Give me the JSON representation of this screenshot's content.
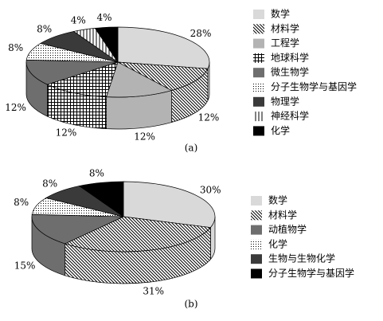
{
  "chart_data": [
    {
      "type": "pie3d",
      "caption": "(a)",
      "categories": [
        "数学",
        "材料学",
        "工程学",
        "地球科学",
        "微生物学",
        "分子生物学与基因学",
        "物理学",
        "神经科学",
        "化学"
      ],
      "values": [
        28,
        12,
        12,
        12,
        12,
        8,
        8,
        4,
        4
      ],
      "value_labels": [
        "28%",
        "12%",
        "12%",
        "12%",
        "12%",
        "8%",
        "8%",
        "4%",
        "4%"
      ],
      "colors": [
        "#d9d9d9",
        "#000000",
        "#b3b3b3",
        "#000000",
        "#6e6e6e",
        "#000000",
        "#3a3a3a",
        "#000000",
        "#000000"
      ],
      "patterns": [
        "solid",
        "hatch",
        "solid",
        "grid",
        "solid",
        "dots",
        "solid",
        "vlines",
        "solid"
      ]
    },
    {
      "type": "pie3d",
      "caption": "(b)",
      "categories": [
        "数学",
        "材料学",
        "动植物学",
        "化学",
        "生物与生物化学",
        "分子生物学与基因学"
      ],
      "values": [
        30,
        31,
        15,
        8,
        8,
        8
      ],
      "value_labels": [
        "30%",
        "31%",
        "15%",
        "8%",
        "8%",
        "8%"
      ],
      "colors": [
        "#d9d9d9",
        "#000000",
        "#6e6e6e",
        "#000000",
        "#3a3a3a",
        "#000000"
      ],
      "patterns": [
        "solid",
        "hatch",
        "solid",
        "dots",
        "solid",
        "solid"
      ]
    }
  ]
}
